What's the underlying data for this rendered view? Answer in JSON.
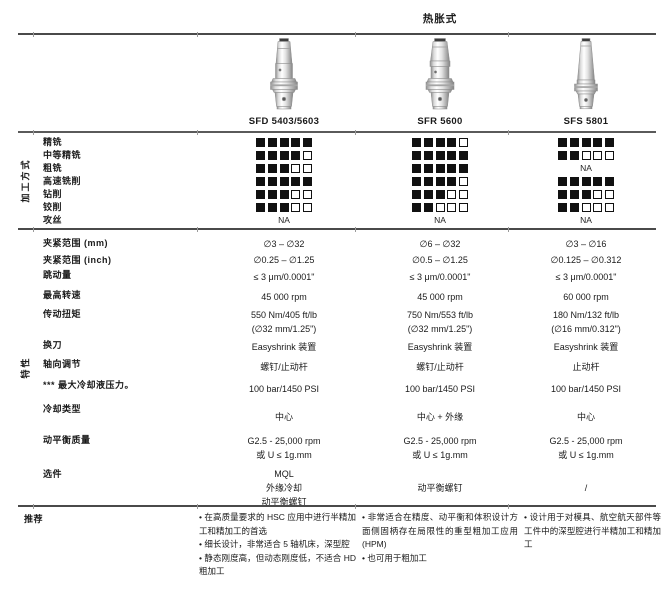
{
  "page": {
    "title": "热胀式"
  },
  "products": [
    {
      "name": "SFD 5403/5603"
    },
    {
      "name": "SFR 5600"
    },
    {
      "name": "SFS 5801"
    }
  ],
  "machining_section": {
    "section_label": "加工方式",
    "rating_scale_max": 5,
    "rows": [
      {
        "label": "精铣",
        "ratings": [
          5,
          4,
          5
        ]
      },
      {
        "label": "中等精铣",
        "ratings": [
          4,
          5,
          2
        ]
      },
      {
        "label": "粗铣",
        "ratings": [
          3,
          5,
          "NA"
        ]
      },
      {
        "label": "高速铣削",
        "ratings": [
          5,
          4,
          5
        ]
      },
      {
        "label": "钻削",
        "ratings": [
          3,
          3,
          3
        ]
      },
      {
        "label": "铰削",
        "ratings": [
          3,
          2,
          2
        ]
      },
      {
        "label": "攻丝",
        "ratings": [
          "NA",
          "NA",
          "NA"
        ]
      }
    ]
  },
  "specs_section": {
    "section_label": "特性",
    "rows": [
      {
        "label": "夹紧范围 (mm)",
        "values": [
          [
            "∅3 – ∅32"
          ],
          [
            "∅6 – ∅32"
          ],
          [
            "∅3 – ∅16"
          ]
        ]
      },
      {
        "label": "夹紧范围 (inch)",
        "values": [
          [
            "∅0.25 – ∅1.25"
          ],
          [
            "∅0.5 – ∅1.25"
          ],
          [
            "∅0.125 – ∅0.312"
          ]
        ]
      },
      {
        "label": "跳动量",
        "values": [
          [
            "≤ 3 μm/0.0001\""
          ],
          [
            "≤ 3 μm/0.0001\""
          ],
          [
            "≤ 3 μm/0.0001\""
          ]
        ]
      },
      {
        "label": "最高转速",
        "values": [
          [
            "45 000 rpm"
          ],
          [
            "45 000 rpm"
          ],
          [
            "60 000 rpm"
          ]
        ]
      },
      {
        "label": "传动扭矩",
        "values": [
          [
            "550 Nm/405 ft/lb",
            "(∅32 mm/1.25\")"
          ],
          [
            "750 Nm/553 ft/lb",
            "(∅32 mm/1.25\")"
          ],
          [
            "180 Nm/132 ft/lb",
            "(∅16 mm/0.312\")"
          ]
        ]
      },
      {
        "label": "换刀",
        "values": [
          [
            "Easyshrink 装置"
          ],
          [
            "Easyshrink 装置"
          ],
          [
            "Easyshrink 装置"
          ]
        ]
      },
      {
        "label": "轴向调节",
        "values": [
          [
            "螺钉/止动杆"
          ],
          [
            "螺钉/止动杆"
          ],
          [
            "止动杆"
          ]
        ]
      },
      {
        "label": "*** 最大冷却液压力。",
        "values": [
          [
            "100 bar/1450 PSI"
          ],
          [
            "100 bar/1450 PSI"
          ],
          [
            "100 bar/1450 PSI"
          ]
        ]
      },
      {
        "label": "冷却类型",
        "values": [
          [
            "中心"
          ],
          [
            "中心 + 外缘"
          ],
          [
            "中心"
          ]
        ]
      },
      {
        "label": "动平衡质量",
        "values": [
          [
            "G2.5 - 25,000 rpm",
            "或 U ≤ 1g.mm"
          ],
          [
            "G2.5 - 25,000 rpm",
            "或 U ≤ 1g.mm"
          ],
          [
            "G2.5 - 25,000 rpm",
            "或 U ≤ 1g.mm"
          ]
        ]
      },
      {
        "label": "选件",
        "values": [
          [
            "MQL",
            "外缘冷却",
            "动平衡螺钉"
          ],
          [
            "动平衡螺钉"
          ],
          [
            "/"
          ]
        ]
      }
    ]
  },
  "recommendation_section": {
    "label": "推荐",
    "columns": [
      {
        "bullets": [
          "• 在高质量要求的 HSC 应用中进行半精加工和精加工的首选",
          "• 细长设计，非常适合 5 轴机床，深型腔",
          "• 静态刚度高，但动态刚度低，不适合 HD 粗加工"
        ]
      },
      {
        "bullets": [
          "• 非常适合在精度、动平衡和体积设计方面侧固柄存在局限性的重型粗加工应用 (HPM)",
          "• 也可用于粗加工"
        ]
      },
      {
        "bullets": [
          "• 设计用于对模具、航空航天部件等工件中的深型腔进行半精加工和精加工"
        ]
      }
    ]
  }
}
